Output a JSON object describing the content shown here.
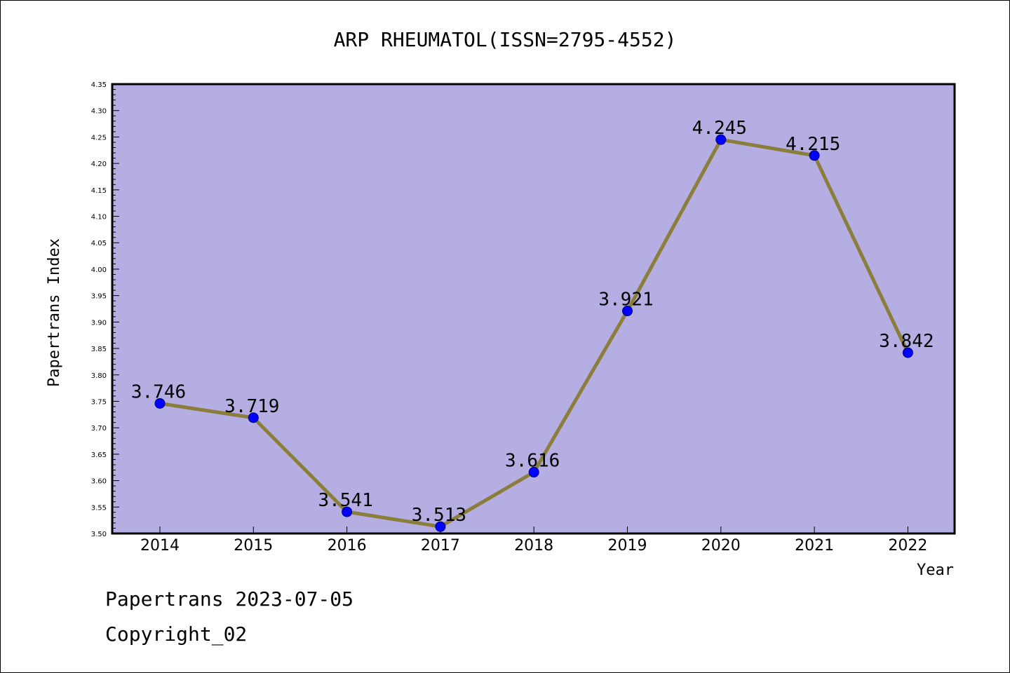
{
  "chart_data": {
    "type": "line",
    "title": "ARP RHEUMATOL(ISSN=2795-4552)",
    "xlabel": "Year",
    "ylabel": "Papertrans Index",
    "categories": [
      "2014",
      "2015",
      "2016",
      "2017",
      "2018",
      "2019",
      "2020",
      "2021",
      "2022"
    ],
    "values": [
      3.746,
      3.719,
      3.541,
      3.513,
      3.616,
      3.921,
      4.245,
      4.215,
      3.842
    ],
    "data_labels": [
      "3.746",
      "3.719",
      "3.541",
      "3.513",
      "3.616",
      "3.921",
      "4.245",
      "4.215",
      "3.842"
    ],
    "ylim": [
      3.5,
      4.35
    ],
    "yticks": [
      "3.50",
      "3.55",
      "3.60",
      "3.65",
      "3.70",
      "3.75",
      "3.80",
      "3.85",
      "3.90",
      "3.95",
      "4.00",
      "4.05",
      "4.10",
      "4.15",
      "4.20",
      "4.25",
      "4.30",
      "4.35"
    ],
    "grid": false,
    "colors": {
      "plot_background": "#b4aee2",
      "line": "#8b7d3a",
      "marker": "#0000ff"
    }
  },
  "footer": {
    "line1": "Papertrans 2023-07-05",
    "line2": "Copyright_02"
  }
}
